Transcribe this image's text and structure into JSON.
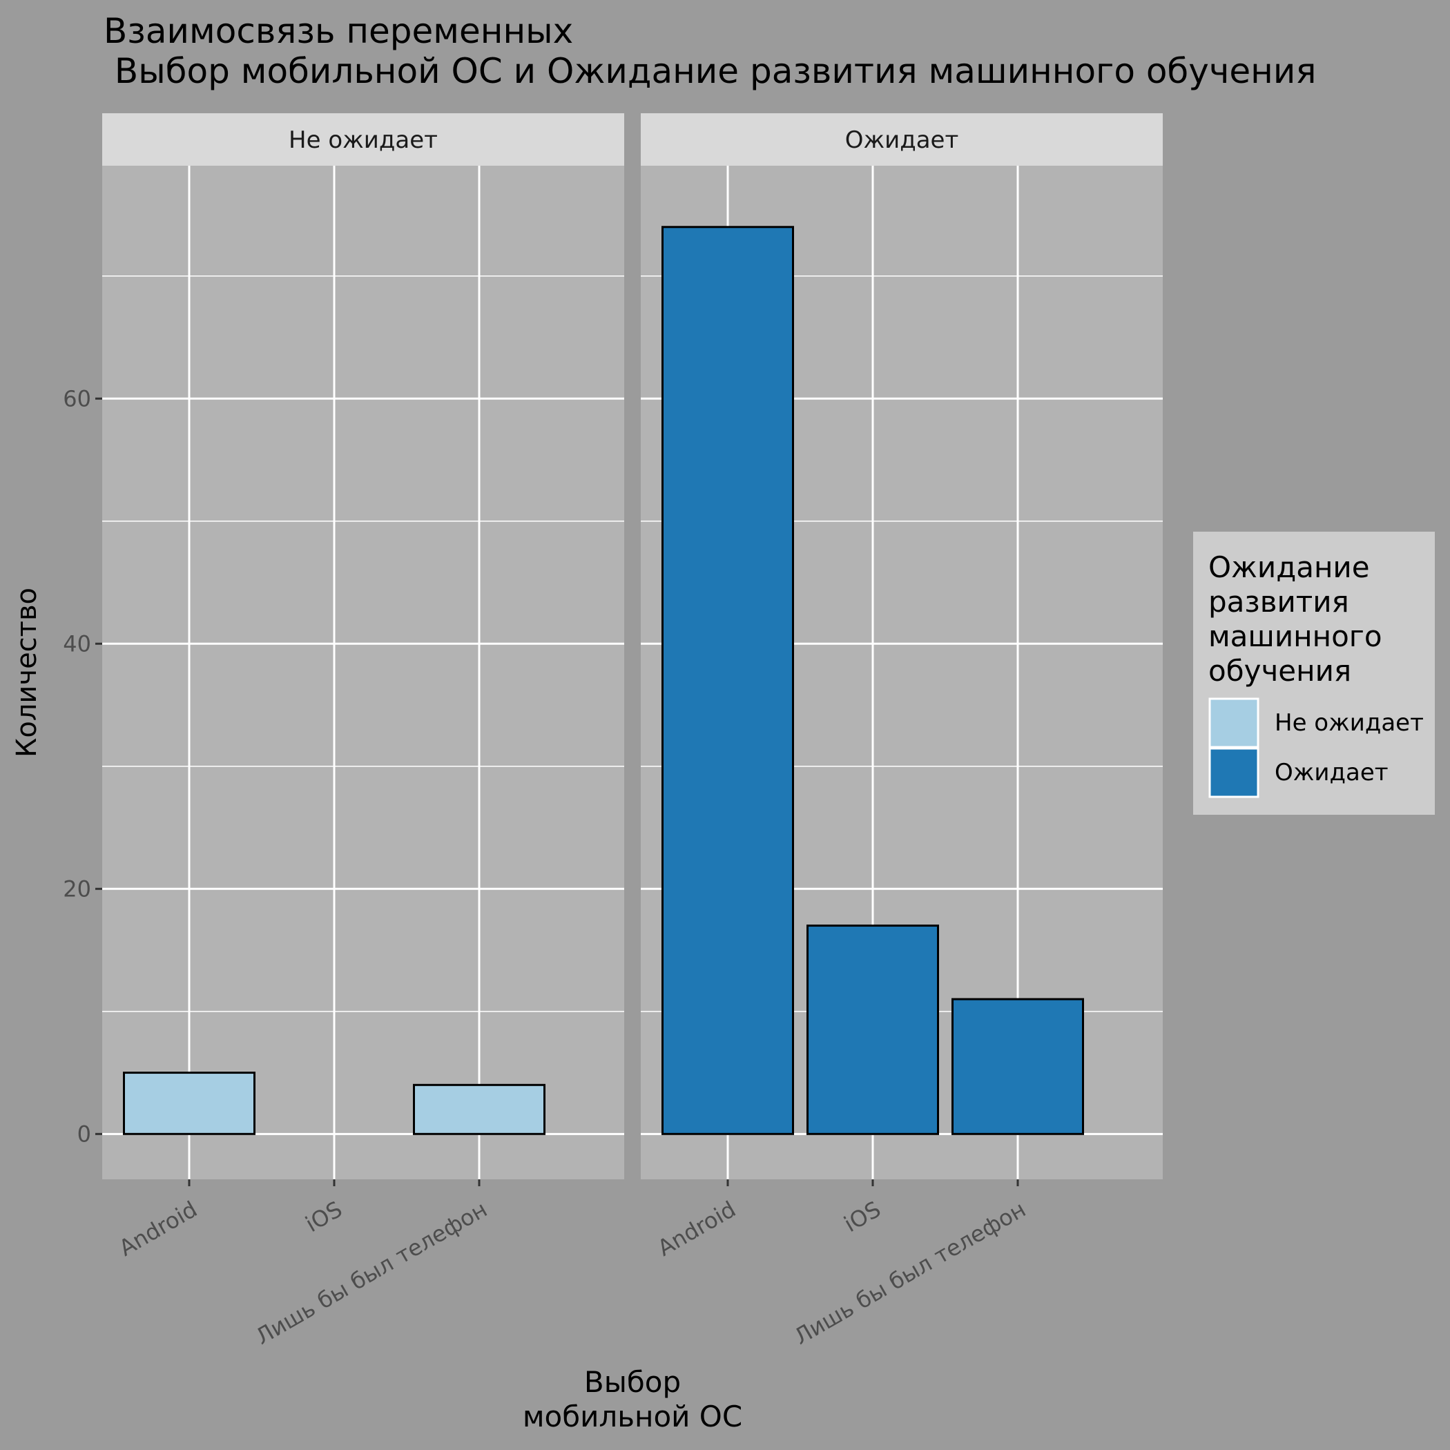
{
  "chart_data": {
    "type": "bar",
    "title": "Взаимосвязь переменных\n Выбор мобильной ОС и Ожидание развития машинного обучения",
    "xlabel": "Выбор\nмобильной ОС",
    "ylabel": "Количество",
    "ylim": [
      -3.7,
      79
    ],
    "y_ticks": [
      0,
      20,
      40,
      60
    ],
    "categories": [
      "Android",
      "iOS",
      "Лишь бы был телефон"
    ],
    "facets": [
      "Не ожидает",
      "Ожидает"
    ],
    "series": [
      {
        "name": "Не ожидает",
        "facet": "Не ожидает",
        "color": "#a6cee3",
        "values": [
          5,
          0,
          4
        ]
      },
      {
        "name": "Ожидает",
        "facet": "Ожидает",
        "color": "#1f78b4",
        "values": [
          74,
          17,
          11
        ]
      }
    ],
    "legend": {
      "title": "Ожидание\nразвития\nмашинного\nобучения",
      "position": "right",
      "items": [
        {
          "label": "Не ожидает",
          "color": "#a6cee3"
        },
        {
          "label": "Ожидает",
          "color": "#1f78b4"
        }
      ]
    },
    "grid": true,
    "colors": {
      "background": "#9b9b9b",
      "panel": "#b3b3b3",
      "strip": "#d9d9d9",
      "legend_box": "#cccccc",
      "grid": "#ffffff",
      "tick_label": "#4d4d4d",
      "text": "#000000"
    }
  }
}
